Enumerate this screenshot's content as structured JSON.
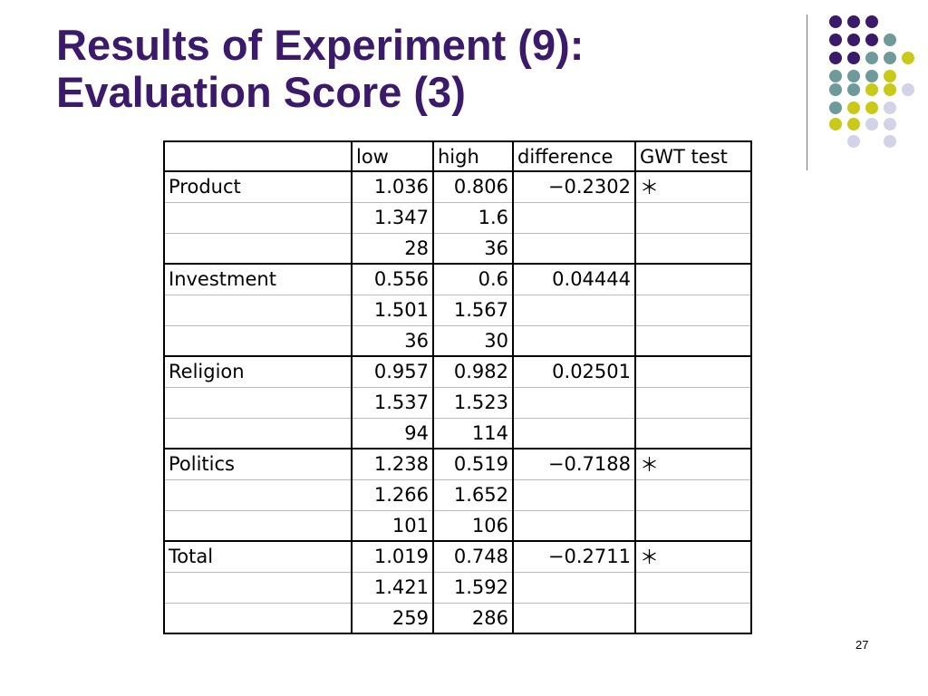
{
  "slide": {
    "title_line1": "Results of Experiment (9):",
    "title_line2": "Evaluation Score (3)",
    "page_number": "27"
  },
  "colors": {
    "title": "#3b1a6b",
    "dot_purple": "#3b1a6b",
    "dot_teal": "#6f9a9a",
    "dot_lime": "#c9c917",
    "dot_lavender": "#d3d3e8"
  },
  "table": {
    "headers": {
      "label": "",
      "low": "low",
      "high": "high",
      "difference": "difference",
      "gwt": "GWT test"
    },
    "rows": [
      {
        "label": "Product",
        "low": "1.036",
        "high": "0.806",
        "difference": "−0.2302",
        "gwt": "＊"
      },
      {
        "label": "",
        "low": "1.347",
        "high": "1.6",
        "difference": "",
        "gwt": ""
      },
      {
        "label": "",
        "low": "28",
        "high": "36",
        "difference": "",
        "gwt": ""
      },
      {
        "label": "Investment",
        "low": "0.556",
        "high": "0.6",
        "difference": "0.04444",
        "gwt": ""
      },
      {
        "label": "",
        "low": "1.501",
        "high": "1.567",
        "difference": "",
        "gwt": ""
      },
      {
        "label": "",
        "low": "36",
        "high": "30",
        "difference": "",
        "gwt": ""
      },
      {
        "label": "Religion",
        "low": "0.957",
        "high": "0.982",
        "difference": "0.02501",
        "gwt": ""
      },
      {
        "label": "",
        "low": "1.537",
        "high": "1.523",
        "difference": "",
        "gwt": ""
      },
      {
        "label": "",
        "low": "94",
        "high": "114",
        "difference": "",
        "gwt": ""
      },
      {
        "label": "Politics",
        "low": "1.238",
        "high": "0.519",
        "difference": "−0.7188",
        "gwt": "＊"
      },
      {
        "label": "",
        "low": "1.266",
        "high": "1.652",
        "difference": "",
        "gwt": ""
      },
      {
        "label": "",
        "low": "101",
        "high": "106",
        "difference": "",
        "gwt": ""
      },
      {
        "label": "Total",
        "low": "1.019",
        "high": "0.748",
        "difference": "−0.2711",
        "gwt": "＊"
      },
      {
        "label": "",
        "low": "1.421",
        "high": "1.592",
        "difference": "",
        "gwt": ""
      },
      {
        "label": "",
        "low": "259",
        "high": "286",
        "difference": "",
        "gwt": ""
      }
    ]
  }
}
